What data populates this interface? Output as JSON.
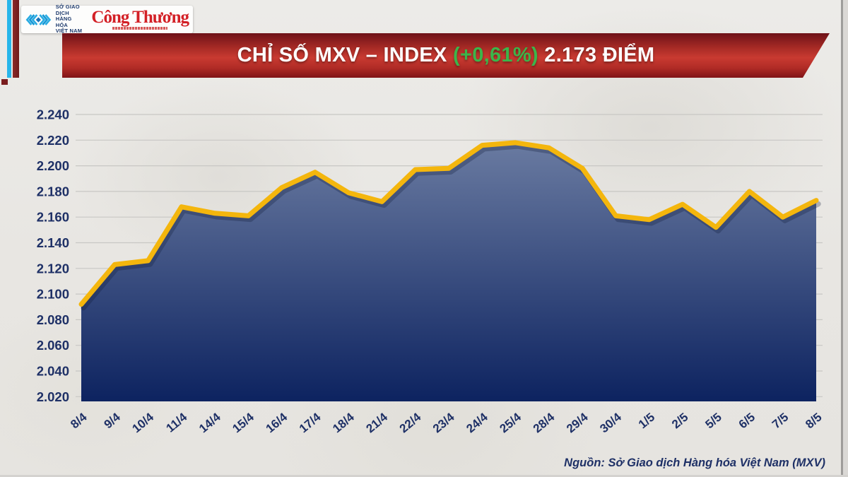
{
  "page": {
    "bg_color": "#e9e7e3"
  },
  "header": {
    "logo": {
      "mxv_line1": "SỞ GIAO DỊCH",
      "mxv_line2": "HÀNG HÓA",
      "mxv_line3": "VIỆT NAM",
      "congthuong": "Công Thương"
    },
    "banner": {
      "title_main": "CHỈ SỐ MXV – INDEX",
      "title_change": "(+0,61%)",
      "title_value": "2.173 ĐIỂM",
      "banner_color": "#c0322e",
      "change_color": "#3cb54a"
    }
  },
  "chart_data": {
    "type": "area",
    "title": "CHỈ SỐ MXV – INDEX (+0,61%) 2.173 ĐIỂM",
    "unit": "điểm",
    "categories": [
      "8/4",
      "9/4",
      "10/4",
      "11/4",
      "14/4",
      "15/4",
      "16/4",
      "17/4",
      "18/4",
      "21/4",
      "22/4",
      "23/4",
      "24/4",
      "25/4",
      "28/4",
      "29/4",
      "30/4",
      "1/5",
      "2/5",
      "5/5",
      "6/5",
      "7/5",
      "8/5"
    ],
    "values": [
      2092,
      2123,
      2126,
      2168,
      2163,
      2161,
      2183,
      2195,
      2179,
      2172,
      2197,
      2198,
      2216,
      2218,
      2214,
      2198,
      2161,
      2158,
      2170,
      2152,
      2180,
      2160,
      2173
    ],
    "ylim": [
      2020,
      2240
    ],
    "ytick_step": 20,
    "ytick_labels_top_to_bottom": [
      "2.240",
      "2.220",
      "2.200",
      "2.180",
      "2.160",
      "2.140",
      "2.120",
      "2.100",
      "2.080",
      "2.060",
      "2.040",
      "2.020"
    ],
    "xlabel": "",
    "ylabel": "",
    "grid": "horizontal",
    "legend": false,
    "line_color": "#f4b60d",
    "fill_top_color": "#6b7ca2",
    "fill_bottom_color": "#0d2360",
    "label_color": "#1e3066",
    "grid_color": "#c8c7c4"
  },
  "footer": {
    "source": "Nguồn: Sở Giao dịch Hàng hóa Việt Nam (MXV)"
  }
}
